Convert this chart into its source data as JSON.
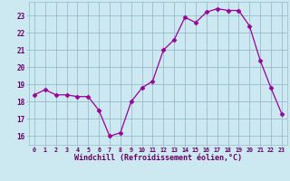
{
  "x": [
    0,
    1,
    2,
    3,
    4,
    5,
    6,
    7,
    8,
    9,
    10,
    11,
    12,
    13,
    14,
    15,
    16,
    17,
    18,
    19,
    20,
    21,
    22,
    23
  ],
  "y": [
    18.4,
    18.7,
    18.4,
    18.4,
    18.3,
    18.3,
    17.5,
    16.0,
    16.2,
    18.0,
    18.8,
    19.2,
    21.0,
    21.6,
    22.9,
    22.6,
    23.2,
    23.4,
    23.3,
    23.3,
    22.4,
    20.4,
    18.8,
    17.3
  ],
  "line_color": "#990099",
  "marker": "D",
  "marker_size": 2.5,
  "bg_color": "#cce8f0",
  "grid_color": "#99bbcc",
  "xlabel": "Windchill (Refroidissement éolien,°C)",
  "xlabel_color": "#660066",
  "tick_color": "#660066",
  "ylim": [
    15.5,
    23.8
  ],
  "xlim": [
    -0.5,
    23.5
  ],
  "yticks": [
    16,
    17,
    18,
    19,
    20,
    21,
    22,
    23
  ],
  "xticks": [
    0,
    1,
    2,
    3,
    4,
    5,
    6,
    7,
    8,
    9,
    10,
    11,
    12,
    13,
    14,
    15,
    16,
    17,
    18,
    19,
    20,
    21,
    22,
    23
  ]
}
